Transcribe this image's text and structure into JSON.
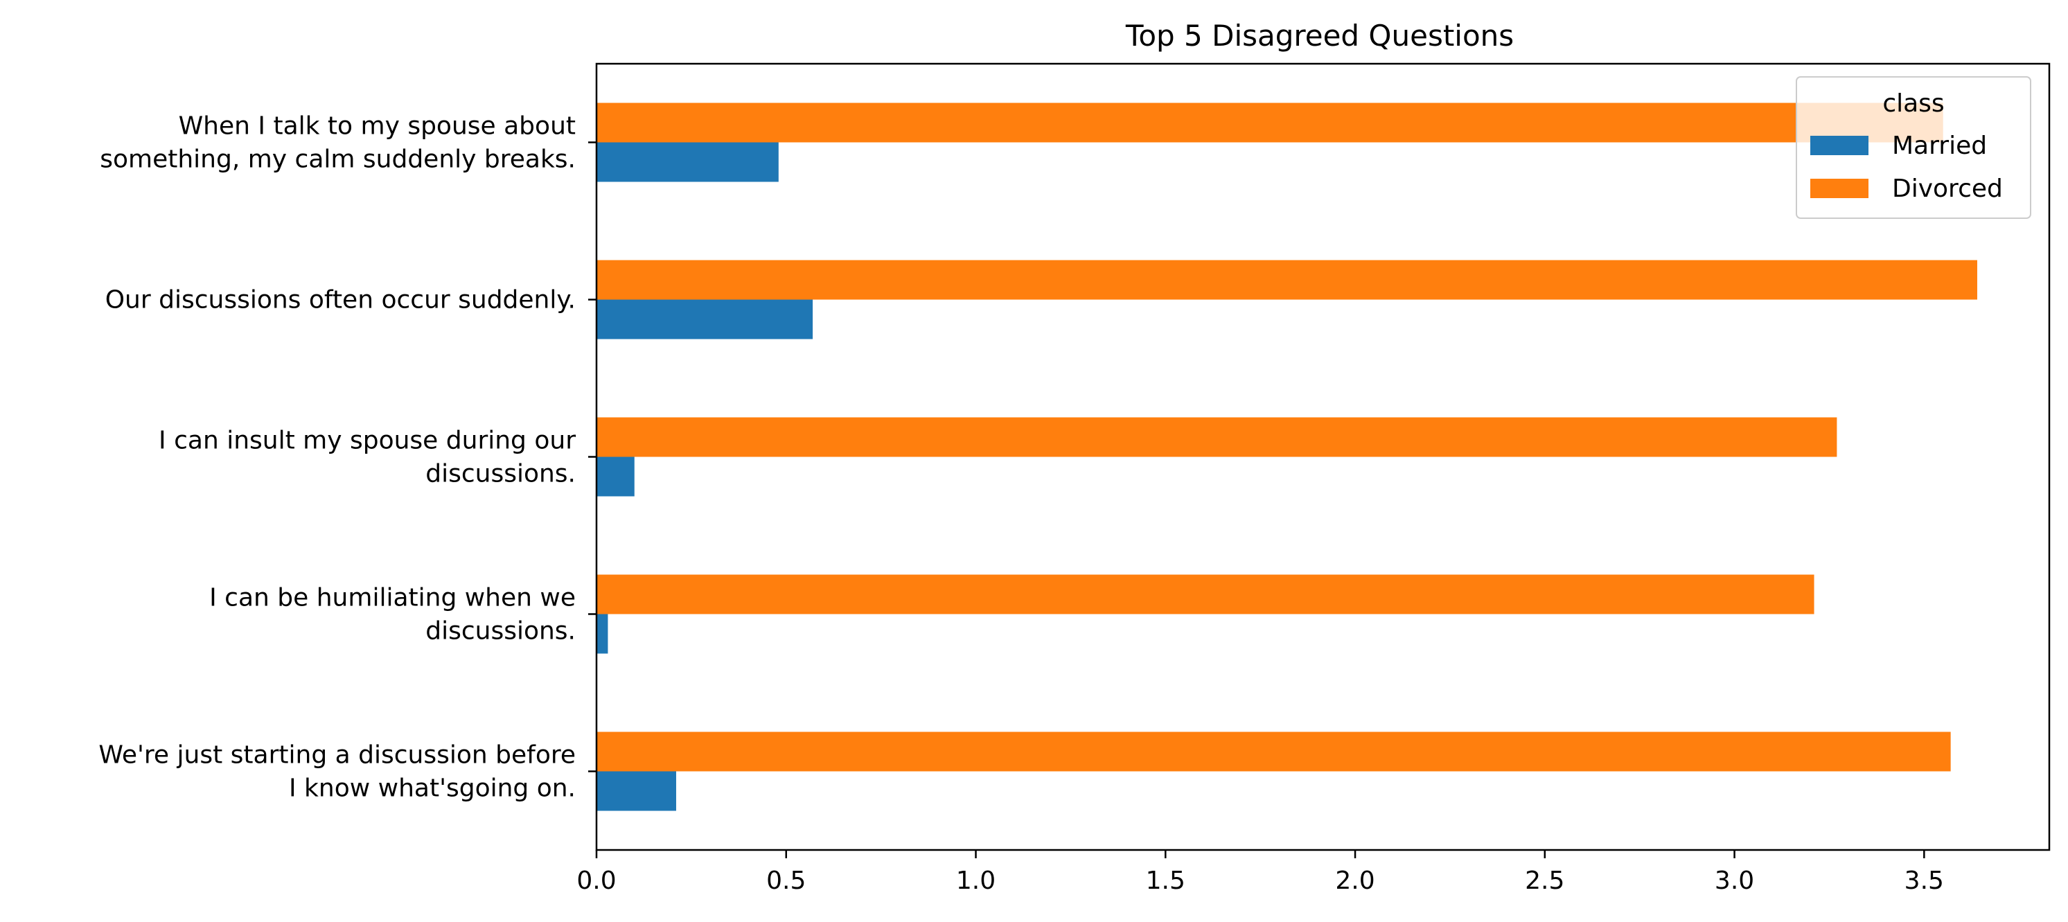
{
  "chart_data": {
    "type": "bar",
    "orientation": "horizontal",
    "title": "Top 5 Disagreed Questions",
    "xlabel": "",
    "ylabel": "",
    "categories": [
      [
        "When I talk to my spouse about",
        "something, my calm suddenly breaks."
      ],
      [
        "Our discussions often occur suddenly."
      ],
      [
        "I can insult my spouse during our",
        "discussions."
      ],
      [
        "I can be humiliating when we",
        "discussions."
      ],
      [
        "We're just starting a discussion before",
        "I know what'sgoing on."
      ]
    ],
    "series": [
      {
        "name": "Married",
        "color": "#1f77b4",
        "values": [
          0.48,
          0.57,
          0.1,
          0.03,
          0.21
        ]
      },
      {
        "name": "Divorced",
        "color": "#ff7f0e",
        "values": [
          3.55,
          3.64,
          3.27,
          3.21,
          3.57
        ]
      }
    ],
    "xlim": [
      0,
      3.83
    ],
    "xticks": [
      "0.0",
      "0.5",
      "1.0",
      "1.5",
      "2.0",
      "2.5",
      "3.0",
      "3.5"
    ],
    "grid": false,
    "legend": {
      "title": "class",
      "placement": "upper-right"
    }
  }
}
